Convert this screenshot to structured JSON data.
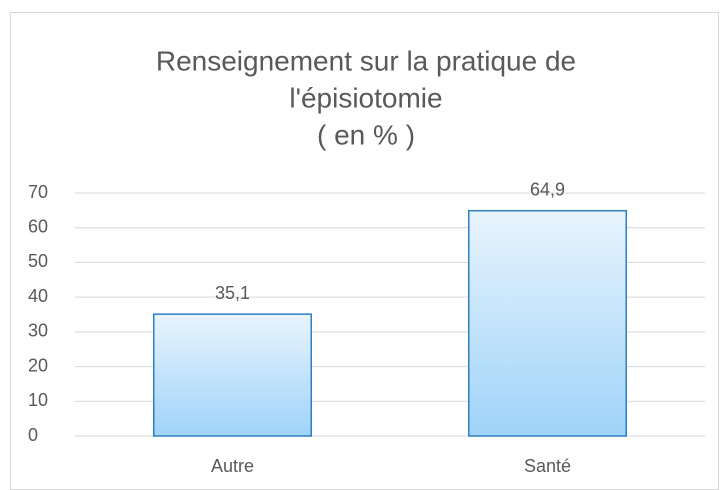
{
  "chart_data": {
    "type": "bar",
    "title": [
      "Renseignement sur la pratique de",
      "l'épisiotomie",
      "( en % )"
    ],
    "categories": [
      "Autre",
      "Santé"
    ],
    "values": [
      35.1,
      64.9
    ],
    "value_labels": [
      "35,1",
      "64,9"
    ],
    "color": "#9fd3f9",
    "ylim": [
      0,
      70
    ],
    "yticks": [
      0,
      10,
      20,
      30,
      40,
      50,
      60,
      70
    ],
    "grid": true
  }
}
